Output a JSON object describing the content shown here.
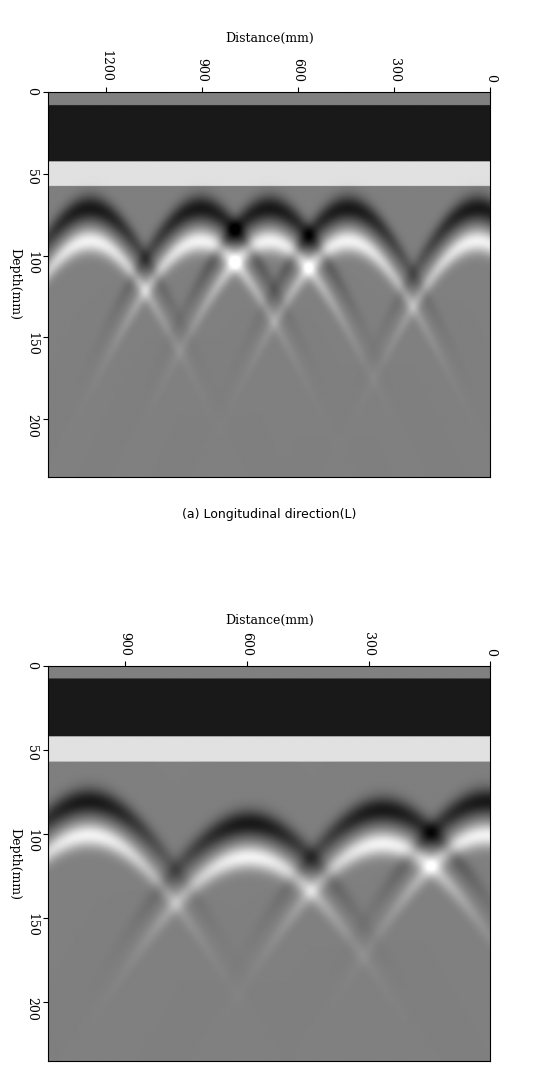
{
  "chart_data": [
    {
      "type": "radargram",
      "title": "(a) Longitudinal direction(L)",
      "x_label": "Distance(mm)",
      "y_label": "Depth(mm)",
      "xlim": [
        1380,
        0
      ],
      "xticks": [
        1200,
        900,
        600,
        300,
        0
      ],
      "ylim": [
        235,
        0
      ],
      "yticks": [
        0,
        50,
        100,
        150,
        200
      ],
      "surface_band": [
        8,
        42
      ],
      "reflections": [
        {
          "distance": 1250,
          "depth": 85
        },
        {
          "distance": 905,
          "depth": 85
        },
        {
          "distance": 690,
          "depth": 85
        },
        {
          "distance": 445,
          "depth": 85
        },
        {
          "distance": 40,
          "depth": 85
        }
      ]
    },
    {
      "type": "radargram",
      "x_label": "Distance(mm)",
      "y_label": "Depth(mm)",
      "xlim": [
        1090,
        0
      ],
      "xticks": [
        900,
        600,
        300,
        0
      ],
      "ylim": [
        235,
        0
      ],
      "yticks": [
        0,
        50,
        100,
        150,
        200
      ],
      "surface_band": [
        8,
        42
      ],
      "reflections": [
        {
          "distance": 990,
          "depth": 95
        },
        {
          "distance": 595,
          "depth": 108
        },
        {
          "distance": 265,
          "depth": 100
        },
        {
          "distance": 10,
          "depth": 95
        }
      ]
    }
  ]
}
